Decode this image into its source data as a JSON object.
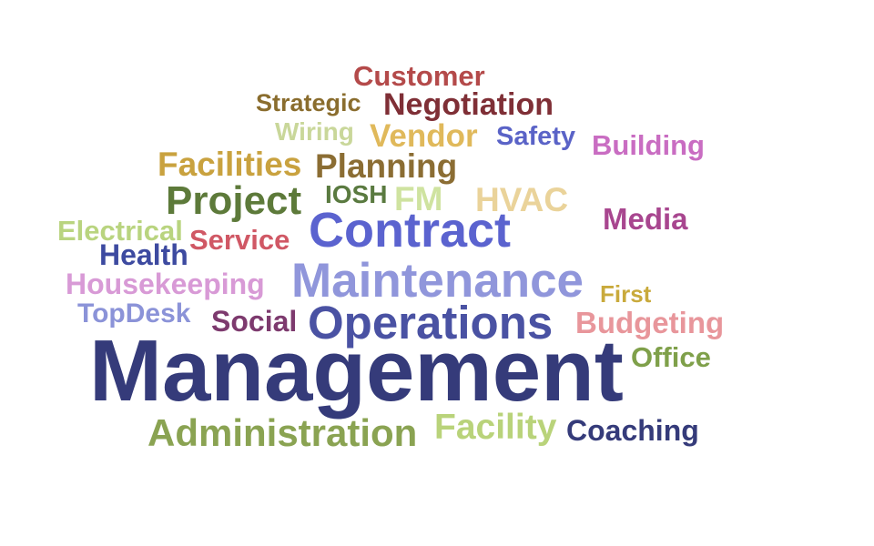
{
  "word_cloud": {
    "words": [
      {
        "text": "Customer",
        "color": "#b44a4a"
      },
      {
        "text": "Strategic",
        "color": "#8a6d2e"
      },
      {
        "text": "Negotiation",
        "color": "#7f2f36"
      },
      {
        "text": "Wiring",
        "color": "#c9d79a"
      },
      {
        "text": "Vendor",
        "color": "#e0b95b"
      },
      {
        "text": "Safety",
        "color": "#5a63c7"
      },
      {
        "text": "Building",
        "color": "#c96dc2"
      },
      {
        "text": "Facilities",
        "color": "#c9a23f"
      },
      {
        "text": "Planning",
        "color": "#8b6d33"
      },
      {
        "text": "Project",
        "color": "#5d7a3a"
      },
      {
        "text": "IOSH",
        "color": "#5a7a40"
      },
      {
        "text": "FM",
        "color": "#cfe3a0"
      },
      {
        "text": "HVAC",
        "color": "#ead39a"
      },
      {
        "text": "Electrical",
        "color": "#b9d47f"
      },
      {
        "text": "Contract",
        "color": "#5b63cf"
      },
      {
        "text": "Media",
        "color": "#a8468f"
      },
      {
        "text": "Service",
        "color": "#d05865"
      },
      {
        "text": "Health",
        "color": "#3d4aa0"
      },
      {
        "text": "Housekeeping",
        "color": "#d89ad6"
      },
      {
        "text": "Maintenance",
        "color": "#9096db"
      },
      {
        "text": "First",
        "color": "#c9aa3c"
      },
      {
        "text": "TopDesk",
        "color": "#8b93d8"
      },
      {
        "text": "Social",
        "color": "#7d3a6e"
      },
      {
        "text": "Operations",
        "color": "#4a52a3"
      },
      {
        "text": "Budgeting",
        "color": "#e8969b"
      },
      {
        "text": "Management",
        "color": "#353b7a"
      },
      {
        "text": "Office",
        "color": "#7fa04a"
      },
      {
        "text": "Administration",
        "color": "#8aa352"
      },
      {
        "text": "Facility",
        "color": "#b9d37a"
      },
      {
        "text": "Coaching",
        "color": "#353b7a"
      }
    ]
  }
}
